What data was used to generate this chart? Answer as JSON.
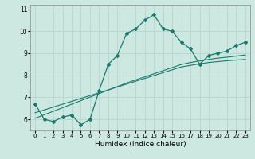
{
  "xlabel": "Humidex (Indice chaleur)",
  "ylabel": "",
  "bg_color": "#cce8e0",
  "grid_color": "#b8d8d0",
  "line_color": "#1a7a6e",
  "x_data": [
    0,
    1,
    2,
    3,
    4,
    5,
    6,
    7,
    8,
    9,
    10,
    11,
    12,
    13,
    14,
    15,
    16,
    17,
    18,
    19,
    20,
    21,
    22,
    23
  ],
  "y_main": [
    6.7,
    6.0,
    5.9,
    6.1,
    6.2,
    5.75,
    6.0,
    7.3,
    8.5,
    8.9,
    9.9,
    10.1,
    10.5,
    10.75,
    10.1,
    10.0,
    9.5,
    9.2,
    8.5,
    8.9,
    9.0,
    9.1,
    9.35,
    9.5
  ],
  "y_reg1": [
    6.3,
    6.43,
    6.56,
    6.69,
    6.82,
    6.95,
    7.08,
    7.21,
    7.34,
    7.47,
    7.6,
    7.73,
    7.86,
    7.99,
    8.12,
    8.25,
    8.38,
    8.45,
    8.52,
    8.58,
    8.62,
    8.66,
    8.69,
    8.72
  ],
  "y_reg2": [
    6.05,
    6.21,
    6.37,
    6.53,
    6.69,
    6.85,
    7.01,
    7.17,
    7.33,
    7.49,
    7.65,
    7.79,
    7.93,
    8.07,
    8.21,
    8.35,
    8.49,
    8.58,
    8.65,
    8.72,
    8.78,
    8.82,
    8.87,
    8.92
  ],
  "ylim": [
    5.5,
    11.2
  ],
  "xlim": [
    -0.5,
    23.5
  ],
  "yticks": [
    6,
    7,
    8,
    9,
    10,
    11
  ],
  "xticks": [
    0,
    1,
    2,
    3,
    4,
    5,
    6,
    7,
    8,
    9,
    10,
    11,
    12,
    13,
    14,
    15,
    16,
    17,
    18,
    19,
    20,
    21,
    22,
    23
  ]
}
